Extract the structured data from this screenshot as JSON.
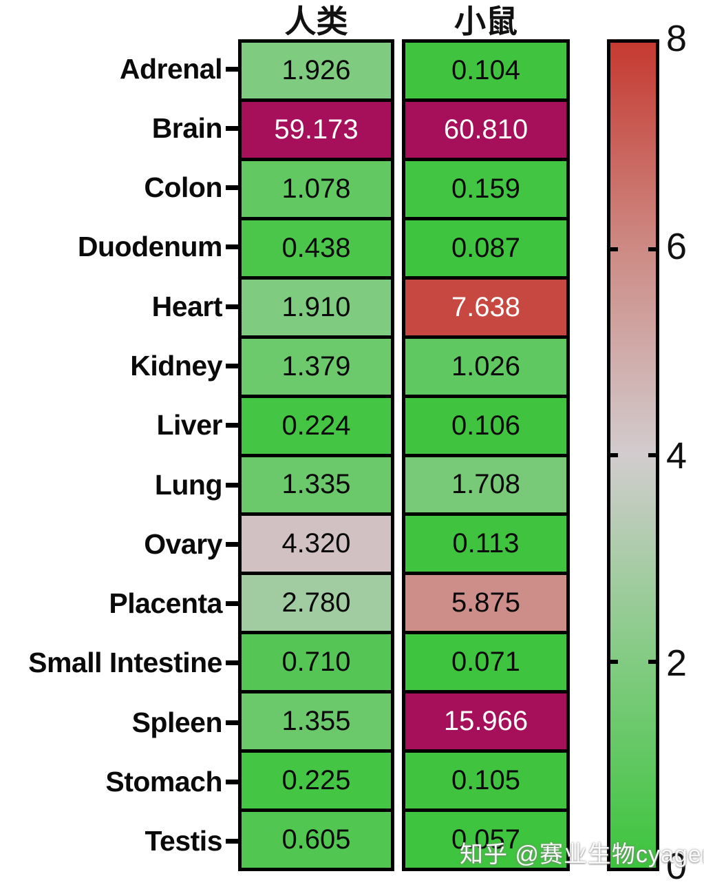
{
  "chart_data": {
    "type": "heatmap",
    "title": "",
    "columns": [
      "人类",
      "小鼠"
    ],
    "rows": [
      "Adrenal",
      "Brain",
      "Colon",
      "Duodenum",
      "Heart",
      "Kidney",
      "Liver",
      "Lung",
      "Ovary",
      "Placenta",
      "Small Intestine",
      "Spleen",
      "Stomach",
      "Testis"
    ],
    "values": [
      [
        "1.926",
        "0.104"
      ],
      [
        "59.173",
        "60.810"
      ],
      [
        "1.078",
        "0.159"
      ],
      [
        "0.438",
        "0.087"
      ],
      [
        "1.910",
        "7.638"
      ],
      [
        "1.379",
        "1.026"
      ],
      [
        "0.224",
        "0.106"
      ],
      [
        "1.335",
        "1.708"
      ],
      [
        "4.320",
        "0.113"
      ],
      [
        "2.780",
        "5.875"
      ],
      [
        "0.710",
        "0.071"
      ],
      [
        "1.355",
        "15.966"
      ],
      [
        "0.225",
        "0.105"
      ],
      [
        "0.605",
        "0.057"
      ]
    ],
    "colorbar": {
      "min": 0,
      "max": 8,
      "tick_labels": [
        "8",
        "6",
        "4",
        "2",
        "0"
      ],
      "orientation": "vertical"
    },
    "legend_position": "right",
    "grid": false
  },
  "colors": {
    "cmap_stops": [
      [
        0,
        "#3cc43c"
      ],
      [
        2,
        "#82cb82"
      ],
      [
        4,
        "#d2ccce"
      ],
      [
        6,
        "#cd8a84"
      ],
      [
        8,
        "#c53a31"
      ]
    ],
    "over_color": "#a6105a",
    "cell_text_dark": "#0a0a0a",
    "cell_text_light": "#ffffff",
    "light_text_threshold": 7,
    "border": "#000000"
  },
  "watermark": {
    "text": "知乎 @赛业生物cyagen"
  }
}
